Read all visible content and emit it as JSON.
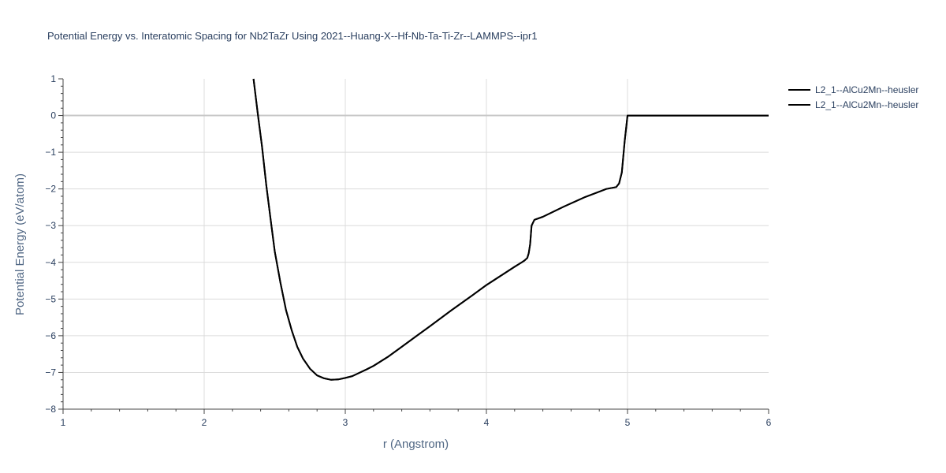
{
  "chart_data": {
    "type": "line",
    "title": "Potential Energy vs. Interatomic Spacing for Nb2TaZr Using 2021--Huang-X--Hf-Nb-Ta-Ti-Zr--LAMMPS--ipr1",
    "xlabel": "r (Angstrom)",
    "ylabel": "Potential Energy (eV/atom)",
    "xlim": [
      1,
      6
    ],
    "ylim": [
      -8,
      1
    ],
    "xticks": [
      "1",
      "2",
      "3",
      "4",
      "5",
      "6"
    ],
    "yticks": [
      "1",
      "0",
      "−1",
      "−2",
      "−3",
      "−4",
      "−5",
      "−6",
      "−7",
      "−8"
    ],
    "grid": true,
    "legend_position": "top-right",
    "line_color": "#000000",
    "series": [
      {
        "name": "L2_1--AlCu2Mn--heusler",
        "x": [
          2.35,
          2.38,
          2.41,
          2.44,
          2.47,
          2.5,
          2.54,
          2.58,
          2.62,
          2.66,
          2.7,
          2.75,
          2.8,
          2.85,
          2.9,
          2.95,
          3.0,
          3.05,
          3.1,
          3.15,
          3.2,
          3.3,
          3.4,
          3.5,
          3.6,
          3.75,
          3.9,
          4.0,
          4.1,
          4.2,
          4.25,
          4.27,
          4.29,
          4.3,
          4.31,
          4.32,
          4.34,
          4.4,
          4.55,
          4.7,
          4.85,
          4.92,
          4.94,
          4.96,
          4.98,
          5.0,
          5.1,
          5.5,
          6.0
        ],
        "y": [
          1.0,
          0.05,
          -0.85,
          -1.9,
          -2.8,
          -3.7,
          -4.55,
          -5.3,
          -5.85,
          -6.3,
          -6.62,
          -6.9,
          -7.08,
          -7.16,
          -7.2,
          -7.19,
          -7.15,
          -7.1,
          -7.01,
          -6.92,
          -6.82,
          -6.58,
          -6.3,
          -6.02,
          -5.74,
          -5.31,
          -4.9,
          -4.62,
          -4.37,
          -4.12,
          -4.0,
          -3.95,
          -3.88,
          -3.75,
          -3.5,
          -3.0,
          -2.84,
          -2.76,
          -2.48,
          -2.22,
          -2.0,
          -1.95,
          -1.85,
          -1.55,
          -0.7,
          0.0,
          0.0,
          0.0,
          0.0
        ]
      },
      {
        "name": "L2_1--AlCu2Mn--heusler",
        "x": [
          2.35,
          2.38,
          2.41,
          2.44,
          2.47,
          2.5,
          2.54,
          2.58,
          2.62,
          2.66,
          2.7,
          2.75,
          2.8,
          2.85,
          2.9,
          2.95,
          3.0,
          3.05,
          3.1,
          3.15,
          3.2,
          3.3,
          3.4,
          3.5,
          3.6,
          3.75,
          3.9,
          4.0,
          4.1,
          4.2,
          4.25,
          4.27,
          4.29,
          4.3,
          4.31,
          4.32,
          4.34,
          4.4,
          4.55,
          4.7,
          4.85,
          4.92,
          4.94,
          4.96,
          4.98,
          5.0,
          5.1,
          5.5,
          6.0
        ],
        "y": [
          1.0,
          0.05,
          -0.85,
          -1.9,
          -2.8,
          -3.7,
          -4.55,
          -5.3,
          -5.85,
          -6.3,
          -6.62,
          -6.9,
          -7.08,
          -7.16,
          -7.2,
          -7.19,
          -7.15,
          -7.1,
          -7.01,
          -6.92,
          -6.82,
          -6.58,
          -6.3,
          -6.02,
          -5.74,
          -5.31,
          -4.9,
          -4.62,
          -4.37,
          -4.12,
          -4.0,
          -3.95,
          -3.88,
          -3.75,
          -3.5,
          -3.0,
          -2.84,
          -2.76,
          -2.48,
          -2.22,
          -2.0,
          -1.95,
          -1.85,
          -1.55,
          -0.7,
          0.0,
          0.0,
          0.0,
          0.0
        ]
      }
    ]
  }
}
